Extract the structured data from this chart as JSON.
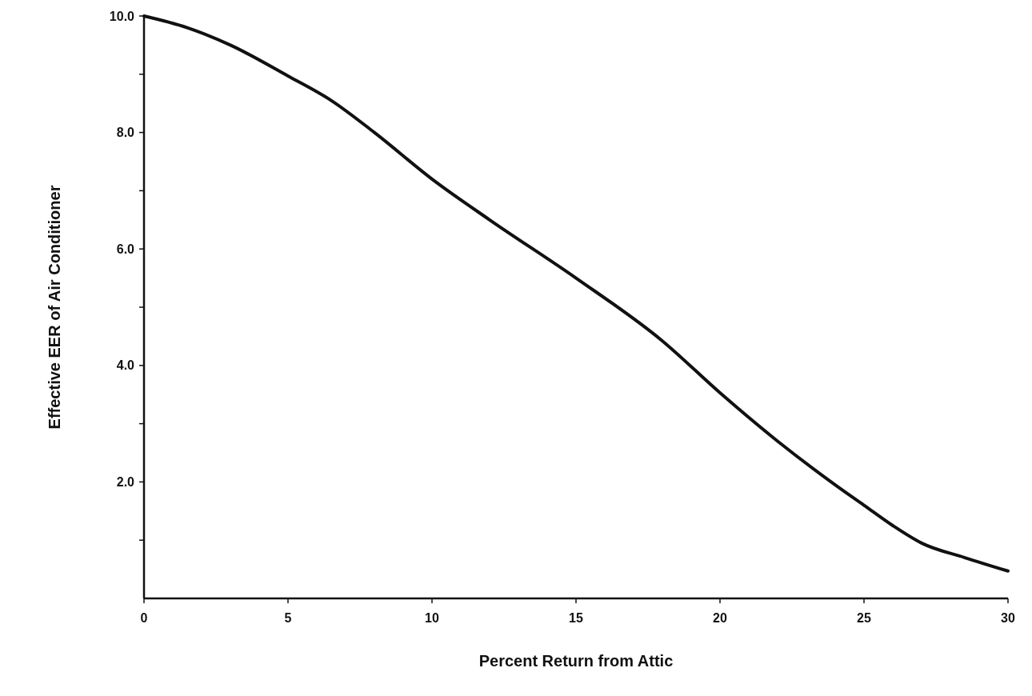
{
  "chart_data": {
    "type": "line",
    "xlabel": "Percent Return from Attic",
    "ylabel": "Effective EER of Air Conditioner",
    "x": [
      0,
      1.5,
      3,
      5,
      6.5,
      8,
      10,
      12,
      15,
      18,
      20,
      22,
      24,
      25,
      26,
      27,
      28.5,
      30
    ],
    "series": [
      {
        "color": "#111111",
        "values": [
          10,
          9.8,
          9.5,
          8.97,
          8.55,
          8.0,
          7.2,
          6.5,
          5.5,
          4.42,
          3.53,
          2.7,
          1.95,
          1.6,
          1.25,
          0.95,
          0.7,
          0.47
        ]
      }
    ],
    "xlim": [
      0,
      30
    ],
    "xticks": [
      0,
      5,
      10,
      15,
      20,
      25,
      30
    ],
    "ylim": [
      0,
      10
    ],
    "yticks": [
      {
        "value": 1,
        "label": null
      },
      {
        "value": 2,
        "label": "2.0"
      },
      {
        "value": 3,
        "label": null
      },
      {
        "value": 4,
        "label": "4.0"
      },
      {
        "value": 5,
        "label": null
      },
      {
        "value": 6,
        "label": "6.0"
      },
      {
        "value": 7,
        "label": null
      },
      {
        "value": 8,
        "label": "8.0"
      },
      {
        "value": 9,
        "label": null
      },
      {
        "value": 10,
        "label": "10.0"
      }
    ],
    "grid": false,
    "marker": "none",
    "line_style": "solid"
  }
}
